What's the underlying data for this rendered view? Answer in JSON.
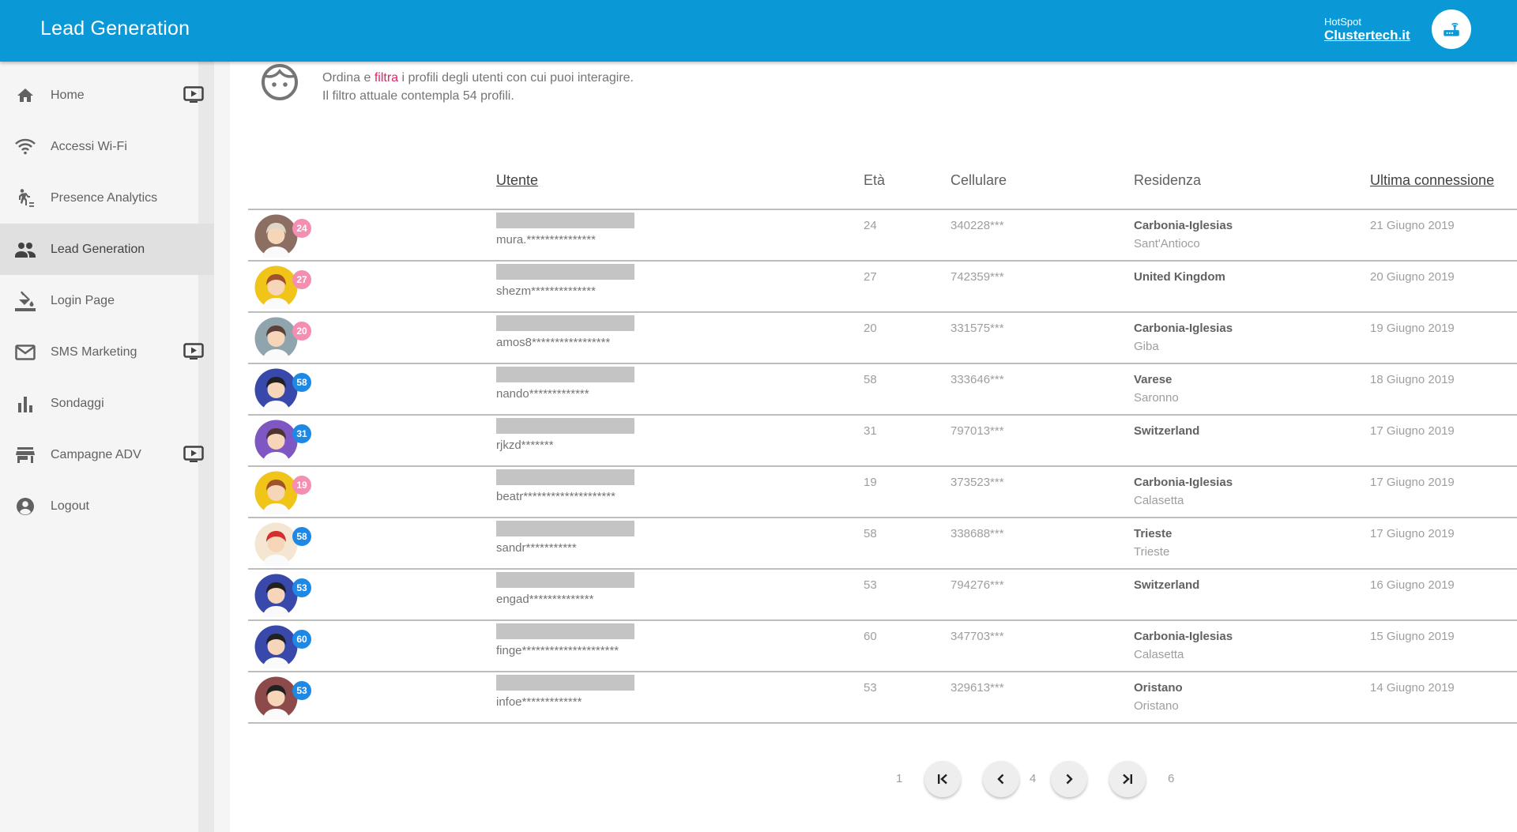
{
  "header": {
    "title": "Lead Generation",
    "brand_small": "HotSpot",
    "brand_big": "Clustertech.it",
    "router_icon": "router-icon"
  },
  "sidebar": {
    "items": [
      {
        "label": "Home",
        "icon": "home-icon",
        "has_tv": true
      },
      {
        "label": "Accessi Wi-Fi",
        "icon": "wifi-icon",
        "has_tv": false
      },
      {
        "label": "Presence Analytics",
        "icon": "walking-icon",
        "has_tv": false
      },
      {
        "label": "Lead Generation",
        "icon": "people-icon",
        "has_tv": false,
        "active": true
      },
      {
        "label": "Login Page",
        "icon": "paint-bucket-icon",
        "has_tv": false
      },
      {
        "label": "SMS Marketing",
        "icon": "mail-icon",
        "has_tv": true
      },
      {
        "label": "Sondaggi",
        "icon": "bar-chart-icon",
        "has_tv": false
      },
      {
        "label": "Campagne ADV",
        "icon": "store-icon",
        "has_tv": true
      },
      {
        "label": "Logout",
        "icon": "account-icon",
        "has_tv": false
      }
    ]
  },
  "intro": {
    "line1_pre": "Ordina e ",
    "line1_link": "filtra",
    "line1_post": " i profili degli utenti con cui puoi interagire.",
    "line2": "Il filtro attuale contempla 54 profili."
  },
  "table": {
    "headers": {
      "utente": "Utente",
      "eta": "Età",
      "cellulare": "Cellulare",
      "residenza": "Residenza",
      "ultima": "Ultima connessione"
    },
    "rows": [
      {
        "age": "24",
        "badge_color": "#f48fb1",
        "avatar_bg": "#8d6e63",
        "hair": "#e0d6c8",
        "username": "mura.***************",
        "phone": "340228***",
        "res1": "Carbonia-Iglesias",
        "res2": "Sant'Antioco",
        "date": "21 Giugno 2019"
      },
      {
        "age": "27",
        "badge_color": "#f48fb1",
        "avatar_bg": "#f0c419",
        "hair": "#a0522d",
        "username": "shezm**************",
        "phone": "742359***",
        "res1": "United Kingdom",
        "res2": "",
        "date": "20 Giugno 2019"
      },
      {
        "age": "20",
        "badge_color": "#f48fb1",
        "avatar_bg": "#90a4ae",
        "hair": "#5d4037",
        "username": "amos8*****************",
        "phone": "331575***",
        "res1": "Carbonia-Iglesias",
        "res2": "Giba",
        "date": "19 Giugno 2019"
      },
      {
        "age": "58",
        "badge_color": "#1e88e5",
        "avatar_bg": "#3949ab",
        "hair": "#212121",
        "username": "nando*************",
        "phone": "333646***",
        "res1": "Varese",
        "res2": "Saronno",
        "date": "18 Giugno 2019"
      },
      {
        "age": "31",
        "badge_color": "#1e88e5",
        "avatar_bg": "#7e57c2",
        "hair": "#4e342e",
        "username": "rjkzd*******",
        "phone": "797013***",
        "res1": "Switzerland",
        "res2": "",
        "date": "17 Giugno 2019"
      },
      {
        "age": "19",
        "badge_color": "#f48fb1",
        "avatar_bg": "#f0c419",
        "hair": "#a0522d",
        "username": "beatr********************",
        "phone": "373523***",
        "res1": "Carbonia-Iglesias",
        "res2": "Calasetta",
        "date": "17 Giugno 2019"
      },
      {
        "age": "58",
        "badge_color": "#1e88e5",
        "avatar_bg": "#f5e6d3",
        "hair": "#d32f2f",
        "username": "sandr***********",
        "phone": "338688***",
        "res1": "Trieste",
        "res2": "Trieste",
        "date": "17 Giugno 2019"
      },
      {
        "age": "53",
        "badge_color": "#1e88e5",
        "avatar_bg": "#3949ab",
        "hair": "#212121",
        "username": "engad**************",
        "phone": "794276***",
        "res1": "Switzerland",
        "res2": "",
        "date": "16 Giugno 2019"
      },
      {
        "age": "60",
        "badge_color": "#1e88e5",
        "avatar_bg": "#3949ab",
        "hair": "#212121",
        "username": "finge*********************",
        "phone": "347703***",
        "res1": "Carbonia-Iglesias",
        "res2": "Calasetta",
        "date": "15 Giugno 2019"
      },
      {
        "age": "53",
        "badge_color": "#1e88e5",
        "avatar_bg": "#8d4a4a",
        "hair": "#212121",
        "username": "infoe*************",
        "phone": "329613***",
        "res1": "Oristano",
        "res2": "Oristano",
        "date": "14 Giugno 2019"
      }
    ]
  },
  "pagination": {
    "first_page": "1",
    "current_page": "4",
    "last_page": "6"
  },
  "colors": {
    "header_bg": "#0a98d6",
    "link": "#e91e63"
  }
}
